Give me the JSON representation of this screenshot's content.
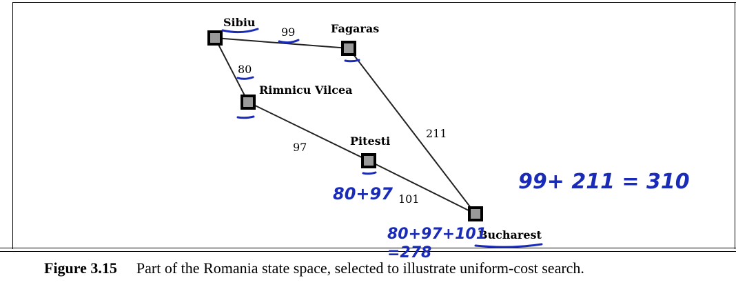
{
  "diagram": {
    "nodes": [
      {
        "id": "sibiu",
        "label": "Sibiu"
      },
      {
        "id": "fagaras",
        "label": "Fagaras"
      },
      {
        "id": "rimnicu",
        "label": "Rimnicu Vilcea"
      },
      {
        "id": "pitesti",
        "label": "Pitesti"
      },
      {
        "id": "bucharest",
        "label": "Bucharest"
      }
    ],
    "edges": [
      {
        "from": "sibiu",
        "to": "fagaras",
        "cost": "99"
      },
      {
        "from": "sibiu",
        "to": "rimnicu",
        "cost": "80"
      },
      {
        "from": "rimnicu",
        "to": "pitesti",
        "cost": "97"
      },
      {
        "from": "fagaras",
        "to": "bucharest",
        "cost": "211"
      },
      {
        "from": "pitesti",
        "to": "bucharest",
        "cost": "101"
      }
    ],
    "annotations": {
      "fagaras_path": "99+ 211 = 310",
      "pitesti_path": "80+97",
      "bucharest_path_line1": "80+97+101",
      "bucharest_path_line2": "=278"
    },
    "colors": {
      "ink": "#1a2bb8",
      "node_fill": "#9a9a9a"
    }
  },
  "caption": {
    "figure_number": "Figure 3.15",
    "text": "Part of the Romania state space, selected to illustrate uniform-cost search."
  }
}
